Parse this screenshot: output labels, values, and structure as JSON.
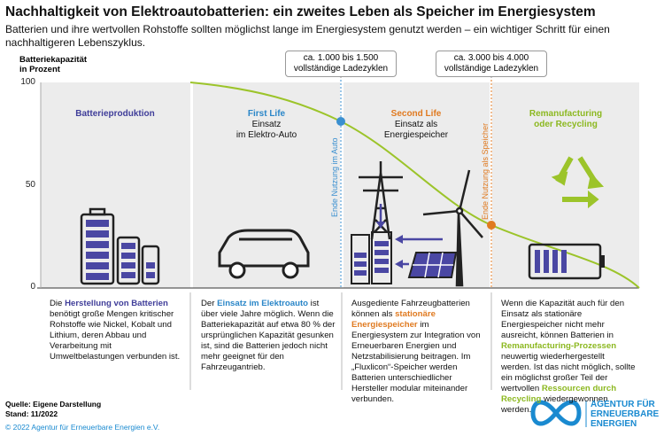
{
  "title": "Nachhaltigkeit von Elektroautobatterien: ein zweites Leben als Speicher im Energiesystem",
  "subtitle": "Batterien und ihre wertvollen Rohstoffe sollten möglichst lange im Energiesystem genutzt werden – ein wichtiger Schritt für einen nachhaltigeren Lebenszyklus.",
  "axis": {
    "title": [
      "Batteriekapazität",
      "in Prozent"
    ],
    "ticks": [
      100,
      50,
      0
    ]
  },
  "callouts": [
    [
      "ca. 1.000 bis 1.500",
      "vollständige Ladezyklen"
    ],
    [
      "ca. 3.000 bis 4.000",
      "vollständige Ladezyklen"
    ]
  ],
  "markers": [
    "Ende Nutzung im Auto",
    "Ende Nutzung als Speicher"
  ],
  "phases": [
    {
      "heading": [
        "Batterieproduktion"
      ],
      "subheading": [],
      "text": [
        "Die ",
        "Herstellung von Batterien",
        " benötigt große Mengen kritischer Rohstoffe wie Nickel, Kobalt und Lithium, deren Abbau und Verarbeitung mit Umweltbelastungen verbunden ist."
      ]
    },
    {
      "heading": [
        "First Life"
      ],
      "subheading": [
        "Einsatz",
        "im Elektro-Auto"
      ],
      "text": [
        "Der ",
        "Einsatz im Elektroauto",
        " ist über viele Jahre möglich. Wenn die Batteriekapazität auf etwa 80 % der ursprünglichen Kapazität gesunken ist, sind die Batterien jedoch nicht mehr geeignet für den Fahrzeugantrieb."
      ]
    },
    {
      "heading": [
        "Second Life"
      ],
      "subheading": [
        "Einsatz als",
        "Energiespeicher"
      ],
      "text": [
        "Ausgediente Fahrzeugbatterien können als ",
        "stationäre Energiespeicher",
        " im Energiesystem zur Integration von Erneuerbaren Energien und Netzstabilisierung beitragen. Im „Fluxlicon“-Speicher werden Batterien unterschiedlicher Hersteller modular miteinander verbunden."
      ]
    },
    {
      "heading": [
        "Remanufacturing",
        "oder Recycling"
      ],
      "subheading": [],
      "text": [
        "Wenn die Kapazität auch für den Einsatz als stationäre Energiespeicher nicht mehr ausreicht, können Batterien in ",
        "Remanufacturing-Prozessen",
        " neuwertig wiederhergestellt werden. Ist das nicht möglich, sollte ein möglichst großer Teil der wertvollen ",
        "Ressourcen durch Recycling",
        " wiedergewonnen werden."
      ]
    }
  ],
  "footer": {
    "source": "Quelle: Eigene Darstellung",
    "date": "Stand: 11/2022",
    "copyright": "© 2022 Agentur für Erneuerbare Energien e.V.",
    "logo": [
      "AGENTUR FÜR",
      "ERNEUERBARE",
      "ENERGIEN"
    ]
  }
}
